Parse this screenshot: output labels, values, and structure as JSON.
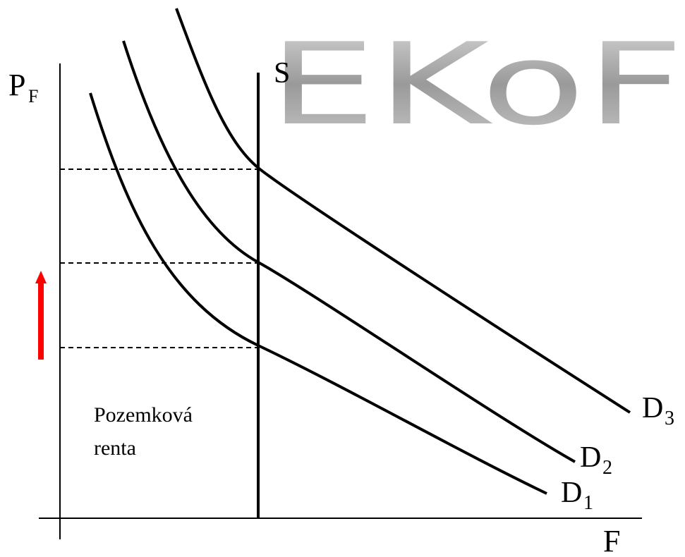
{
  "watermark": "EKoF",
  "y_axis_label": {
    "main": "P",
    "sub": "F"
  },
  "x_axis_label": "F",
  "supply_label": "S",
  "demand_labels": [
    {
      "main": "D",
      "sub": "1"
    },
    {
      "main": "D",
      "sub": "2"
    },
    {
      "main": "D",
      "sub": "3"
    }
  ],
  "area_label": [
    "Pozemková",
    "renta"
  ]
}
